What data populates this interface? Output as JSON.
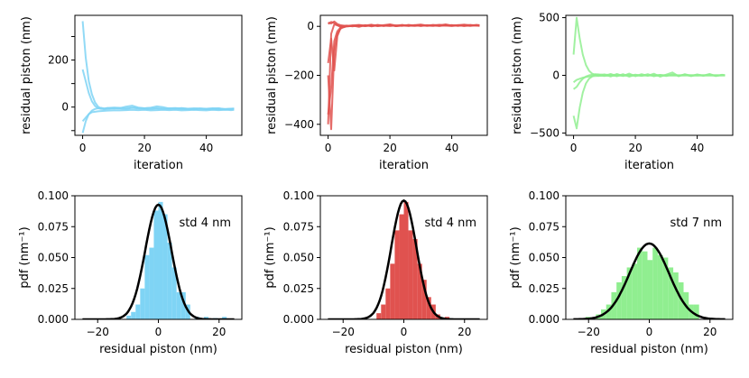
{
  "chart_data": [
    {
      "type": "line",
      "xlabel": "iteration",
      "ylabel": "residual piston (nm)",
      "xlim": [
        -2.5,
        51.5
      ],
      "ylim": [
        -120,
        390
      ],
      "xticks": [
        0,
        20,
        40
      ],
      "yticks": [
        -100,
        0,
        100,
        200,
        300
      ],
      "ytick_labels": [
        "",
        "0",
        "",
        "200",
        ""
      ],
      "grid": false,
      "color": "#7fd4f5",
      "series": [
        {
          "x": [
            0,
            1,
            2,
            3,
            4,
            5,
            6,
            7,
            8,
            10,
            12,
            14,
            16,
            18,
            20,
            22,
            24,
            26,
            28,
            30,
            32,
            34,
            36,
            38,
            40,
            42,
            44,
            46,
            48,
            49
          ],
          "values": [
            365,
            210,
            110,
            55,
            20,
            2,
            -6,
            -10,
            -8,
            -5,
            -6,
            -8,
            -3,
            -6,
            -8,
            -9,
            -5,
            -7,
            -8,
            -6,
            -9,
            -8,
            -10,
            -7,
            -9,
            -8,
            -10,
            -9,
            -7,
            -8
          ]
        },
        {
          "x": [
            0,
            1,
            2,
            3,
            4,
            5,
            6,
            7,
            8,
            10,
            12,
            14,
            16,
            18,
            20,
            22,
            24,
            26,
            28,
            30,
            32,
            34,
            36,
            38,
            40,
            42,
            44,
            46,
            48,
            49
          ],
          "values": [
            160,
            110,
            60,
            25,
            5,
            -5,
            -8,
            -6,
            -4,
            -6,
            -5,
            2,
            6,
            -2,
            -5,
            -3,
            3,
            0,
            -6,
            -8,
            -4,
            -7,
            -9,
            -6,
            -8,
            -7,
            -5,
            -9,
            -8,
            -7
          ]
        },
        {
          "x": [
            0,
            1,
            2,
            3,
            4,
            5,
            6,
            7,
            8,
            10,
            12,
            14,
            16,
            18,
            20,
            22,
            24,
            26,
            28,
            30,
            32,
            34,
            36,
            38,
            40,
            42,
            44,
            46,
            48,
            49
          ],
          "values": [
            -110,
            -60,
            -30,
            -15,
            -8,
            -5,
            -3,
            -6,
            -4,
            -2,
            -3,
            -5,
            -2,
            -4,
            -5,
            -3,
            -6,
            -8,
            -5,
            -4,
            -6,
            -7,
            -5,
            -6,
            -7,
            -5,
            -6,
            -8,
            -7,
            -6
          ]
        },
        {
          "x": [
            0,
            1,
            2,
            3,
            4,
            5,
            6,
            7,
            8,
            10,
            12,
            14,
            16,
            18,
            20,
            22,
            24,
            26,
            28,
            30,
            32,
            34,
            36,
            38,
            40,
            42,
            44,
            46,
            48,
            49
          ],
          "values": [
            -60,
            -45,
            -30,
            -22,
            -20,
            -18,
            -17,
            -16,
            -15,
            -14,
            -14,
            -13,
            -12,
            -13,
            -12,
            -14,
            -13,
            -12,
            -13,
            -12,
            -14,
            -13,
            -12,
            -13,
            -14,
            -12,
            -13,
            -12,
            -13,
            -12
          ]
        }
      ]
    },
    {
      "type": "line",
      "xlabel": "iteration",
      "ylabel": "residual piston (nm)",
      "xlim": [
        -2.5,
        51.5
      ],
      "ylim": [
        -445,
        45
      ],
      "xticks": [
        0,
        20,
        40
      ],
      "yticks": [
        0,
        -200,
        -400
      ],
      "grid": false,
      "color": "#e0524f",
      "series": [
        {
          "x": [
            0,
            1,
            2,
            3,
            4,
            5,
            6,
            8,
            10,
            12,
            14,
            16,
            18,
            20,
            22,
            24,
            26,
            28,
            30,
            32,
            34,
            36,
            38,
            40,
            42,
            44,
            46,
            48,
            49
          ],
          "values": [
            -400,
            -30,
            8,
            4,
            -2,
            0,
            2,
            3,
            -2,
            5,
            0,
            4,
            2,
            6,
            1,
            3,
            5,
            4,
            2,
            5,
            3,
            6,
            4,
            3,
            5,
            4,
            6,
            3,
            4
          ]
        },
        {
          "x": [
            0,
            1,
            2,
            3,
            4,
            5,
            6,
            8,
            10,
            12,
            14,
            16,
            18,
            20,
            22,
            24,
            26,
            28,
            30,
            32,
            34,
            36,
            38,
            40,
            42,
            44,
            46,
            48,
            49
          ],
          "values": [
            -360,
            -250,
            -60,
            -20,
            -5,
            2,
            3,
            0,
            4,
            2,
            5,
            1,
            3,
            4,
            2,
            5,
            3,
            2,
            4,
            3,
            5,
            2,
            4,
            5,
            3,
            4,
            2,
            5,
            4
          ]
        },
        {
          "x": [
            0,
            1,
            2,
            3,
            4,
            5,
            6,
            8,
            10,
            12,
            14,
            16,
            18,
            20,
            22,
            24,
            26,
            28,
            30,
            32,
            34,
            36,
            38,
            40,
            42,
            44,
            46,
            48,
            49
          ],
          "values": [
            -200,
            -420,
            -100,
            -30,
            -10,
            -3,
            0,
            2,
            3,
            1,
            4,
            2,
            3,
            5,
            2,
            4,
            3,
            5,
            2,
            4,
            3,
            2,
            5,
            3,
            4,
            2,
            3,
            4,
            3
          ]
        },
        {
          "x": [
            0,
            1,
            2,
            3,
            4,
            5,
            6,
            8,
            10,
            12,
            14,
            16,
            18,
            20,
            22,
            24,
            26,
            28,
            30,
            32,
            34,
            36,
            38,
            40,
            42,
            44,
            46,
            48,
            49
          ],
          "values": [
            -150,
            -50,
            -180,
            -40,
            -8,
            -2,
            1,
            3,
            1,
            4,
            2,
            6,
            3,
            1,
            4,
            2,
            6,
            3,
            5,
            2,
            4,
            6,
            3,
            5,
            2,
            4,
            3,
            5,
            4
          ]
        },
        {
          "x": [
            0,
            1,
            2,
            3,
            4,
            5,
            6,
            8,
            10,
            12,
            14,
            16,
            18,
            20,
            22,
            24,
            26,
            28,
            30,
            32,
            34,
            36,
            38,
            40,
            42,
            44,
            46,
            48,
            49
          ],
          "values": [
            15,
            12,
            20,
            10,
            5,
            3,
            2,
            4,
            6,
            3,
            7,
            2,
            5,
            8,
            3,
            6,
            2,
            5,
            7,
            3,
            6,
            4,
            8,
            3,
            5,
            7,
            4,
            6,
            5
          ]
        },
        {
          "x": [
            0,
            1,
            2,
            3,
            4,
            5,
            6,
            8,
            10,
            12,
            14,
            16,
            18,
            20,
            22,
            24,
            26,
            28,
            30,
            32,
            34,
            36,
            38,
            40,
            42,
            44,
            46,
            48,
            49
          ],
          "values": [
            10,
            18,
            14,
            5,
            2,
            -4,
            0,
            2,
            4,
            1,
            3,
            5,
            2,
            4,
            1,
            3,
            2,
            4,
            6,
            3,
            2,
            5,
            3,
            1,
            4,
            2,
            5,
            3,
            2
          ]
        }
      ]
    },
    {
      "type": "line",
      "xlabel": "iteration",
      "ylabel": "residual piston (nm)",
      "xlim": [
        -2.5,
        51.5
      ],
      "ylim": [
        -520,
        520
      ],
      "xticks": [
        0,
        20,
        40
      ],
      "yticks": [
        -500,
        0,
        500
      ],
      "grid": false,
      "color": "#90ee90",
      "series": [
        {
          "x": [
            0,
            1,
            2,
            3,
            4,
            5,
            6,
            7,
            8,
            10,
            12,
            14,
            16,
            18,
            20,
            22,
            24,
            26,
            28,
            30,
            32,
            34,
            36,
            38,
            40,
            42,
            44,
            46,
            48,
            49
          ],
          "values": [
            180,
            500,
            320,
            180,
            90,
            40,
            15,
            5,
            -5,
            8,
            -10,
            12,
            -6,
            15,
            -8,
            10,
            -4,
            14,
            -12,
            6,
            25,
            -8,
            10,
            -5,
            8,
            -3,
            12,
            -6,
            5,
            2
          ]
        },
        {
          "x": [
            0,
            1,
            2,
            3,
            4,
            5,
            6,
            7,
            8,
            10,
            12,
            14,
            16,
            18,
            20,
            22,
            24,
            26,
            28,
            30,
            32,
            34,
            36,
            38,
            40,
            42,
            44,
            46,
            48,
            49
          ],
          "values": [
            -350,
            -460,
            -280,
            -150,
            -70,
            -30,
            -10,
            5,
            8,
            -6,
            12,
            -8,
            10,
            -12,
            6,
            -5,
            10,
            -8,
            4,
            -6,
            8,
            -4,
            6,
            -7,
            5,
            -3,
            7,
            -5,
            3,
            -2
          ]
        },
        {
          "x": [
            0,
            1,
            2,
            3,
            4,
            5,
            6,
            7,
            8,
            10,
            12,
            14,
            16,
            18,
            20,
            22,
            24,
            26,
            28,
            30,
            32,
            34,
            36,
            38,
            40,
            42,
            44,
            46,
            48,
            49
          ],
          "values": [
            -60,
            -40,
            -30,
            -20,
            -15,
            -10,
            -8,
            -6,
            -5,
            -4,
            -3,
            -4,
            -2,
            -3,
            -2,
            -3,
            -1,
            -2,
            -3,
            -1,
            -2,
            -1,
            -2,
            -1,
            -3,
            -1,
            -2,
            -1,
            -2,
            -1
          ]
        },
        {
          "x": [
            0,
            1,
            2,
            3,
            4,
            5,
            6,
            7,
            8,
            10,
            12,
            14,
            16,
            18,
            20,
            22,
            24,
            26,
            28,
            30,
            32,
            34,
            36,
            38,
            40,
            42,
            44,
            46,
            48,
            49
          ],
          "values": [
            -120,
            -100,
            -60,
            -30,
            -10,
            0,
            5,
            10,
            8,
            6,
            4,
            5,
            3,
            4,
            2,
            3,
            1,
            2,
            3,
            1,
            2,
            1,
            3,
            2,
            1,
            2,
            1,
            2,
            1,
            1
          ]
        }
      ]
    },
    {
      "type": "bar",
      "xlabel": "residual piston (nm)",
      "ylabel": "pdf (nm⁻¹)",
      "xlim": [
        -27.5,
        27.5
      ],
      "ylim": [
        0,
        0.1
      ],
      "xticks": [
        -20,
        0,
        20
      ],
      "yticks": [
        0,
        0.025,
        0.05,
        0.075,
        0.1
      ],
      "ytick_labels": [
        "0.000",
        "0.025",
        "0.050",
        "0.075",
        "0.100"
      ],
      "annotation": "std 4 nm",
      "bar_color": "#7fd4f5",
      "fit_std": 4.3,
      "bin_width": 1.5,
      "bins": [
        -10.5,
        -9,
        -7.5,
        -6,
        -4.5,
        -3,
        -1.5,
        0,
        1.5,
        3,
        4.5,
        6,
        7.5,
        9,
        12,
        15,
        18,
        21
      ],
      "values": [
        0.003,
        0.006,
        0.012,
        0.025,
        0.052,
        0.058,
        0.088,
        0.095,
        0.085,
        0.062,
        0.042,
        0.022,
        0.022,
        0.012,
        0.002,
        0.002,
        0.001,
        0.002
      ]
    },
    {
      "type": "bar",
      "xlabel": "residual piston (nm)",
      "ylabel": "pdf (nm⁻¹)",
      "xlim": [
        -27.5,
        27.5
      ],
      "ylim": [
        0,
        0.1
      ],
      "xticks": [
        -20,
        0,
        20
      ],
      "yticks": [
        0,
        0.025,
        0.05,
        0.075,
        0.1
      ],
      "ytick_labels": [
        "0.000",
        "0.025",
        "0.050",
        "0.075",
        "0.100"
      ],
      "annotation": "std 4 nm",
      "bar_color": "#e0524f",
      "fit_std": 4.15,
      "bin_width": 1.5,
      "bins": [
        -9,
        -7.5,
        -6,
        -4.5,
        -3,
        -1.5,
        0,
        1.5,
        3,
        4.5,
        6,
        7.5,
        9,
        10.5,
        13.5
      ],
      "values": [
        0.005,
        0.012,
        0.025,
        0.045,
        0.072,
        0.085,
        0.095,
        0.072,
        0.065,
        0.045,
        0.032,
        0.018,
        0.012,
        0.004,
        0.002
      ]
    },
    {
      "type": "bar",
      "xlabel": "residual piston (nm)",
      "ylabel": "pdf (nm⁻¹)",
      "xlim": [
        -27.5,
        27.5
      ],
      "ylim": [
        0,
        0.1
      ],
      "xticks": [
        -20,
        0,
        20
      ],
      "yticks": [
        0,
        0.025,
        0.05,
        0.075,
        0.1
      ],
      "ytick_labels": [
        "0.000",
        "0.025",
        "0.050",
        "0.075",
        "0.100"
      ],
      "annotation": "std 7 nm",
      "bar_color": "#90ee90",
      "fit_std": 6.5,
      "bin_width": 1.7,
      "bins": [
        -21,
        -17.6,
        -15.9,
        -14.2,
        -12.5,
        -10.8,
        -9.1,
        -7.4,
        -5.7,
        -4,
        -2.3,
        -0.6,
        1.1,
        2.8,
        4.5,
        6.2,
        7.9,
        9.6,
        11.3,
        13,
        14.7
      ],
      "values": [
        0.002,
        0.004,
        0.008,
        0.012,
        0.022,
        0.03,
        0.035,
        0.042,
        0.045,
        0.058,
        0.055,
        0.048,
        0.058,
        0.052,
        0.05,
        0.042,
        0.038,
        0.03,
        0.022,
        0.012,
        0.012
      ]
    }
  ]
}
